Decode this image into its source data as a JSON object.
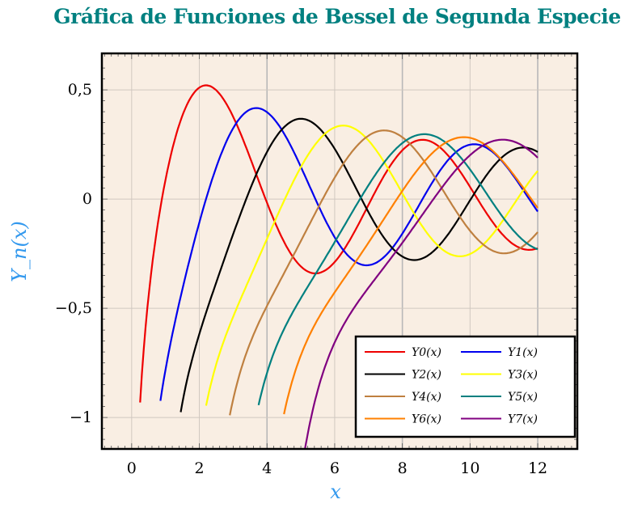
{
  "chart_data": {
    "type": "line",
    "title": "Gráfica de Funciones de Bessel de Segunda Especie",
    "xlabel": "x",
    "ylabel": "Y_n(x)",
    "xlim": [
      -0.88,
      13.17
    ],
    "ylim": [
      -1.144,
      0.667
    ],
    "xticks": [
      0,
      2,
      4,
      6,
      8,
      10,
      12
    ],
    "xtick_labels": [
      "0",
      "2",
      "4",
      "6",
      "8",
      "10",
      "12"
    ],
    "yticks": [
      0.5,
      0,
      -0.5,
      -1
    ],
    "ytick_labels": [
      "0,5",
      "0",
      "−0,5",
      "−1"
    ],
    "grid": true,
    "background": "#f9eee3",
    "legend_placement": "bottom-right",
    "function": "Bessel function of the second kind Y_n(x)",
    "series": [
      {
        "name": "Y0(x)",
        "order": 0,
        "x_range": [
          0.25,
          12
        ],
        "color": "#ee0000"
      },
      {
        "name": "Y1(x)",
        "order": 1,
        "x_range": [
          0.85,
          12
        ],
        "color": "#0000ee"
      },
      {
        "name": "Y2(x)",
        "order": 2,
        "x_range": [
          1.45,
          12
        ],
        "color": "#000000"
      },
      {
        "name": "Y3(x)",
        "order": 3,
        "x_range": [
          2.2,
          12
        ],
        "color": "#ffff00"
      },
      {
        "name": "Y4(x)",
        "order": 4,
        "x_range": [
          2.9,
          12
        ],
        "color": "#bf8040"
      },
      {
        "name": "Y5(x)",
        "order": 5,
        "x_range": [
          3.75,
          12
        ],
        "color": "#008080"
      },
      {
        "name": "Y6(x)",
        "order": 6,
        "x_range": [
          4.5,
          12
        ],
        "color": "#ff8000"
      },
      {
        "name": "Y7(x)",
        "order": 7,
        "x_range": [
          5.05,
          12
        ],
        "color": "#800080"
      }
    ]
  }
}
